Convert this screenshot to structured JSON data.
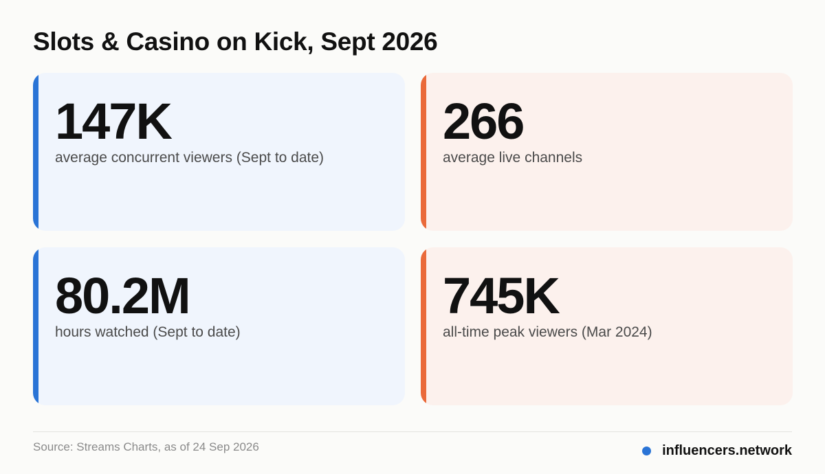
{
  "title": "Slots & Casino on Kick, Sept 2026",
  "stats": [
    {
      "value": "147K",
      "label": "average concurrent viewers (Sept to date)",
      "accent": "#2a74d6",
      "background": "#f0f5fd"
    },
    {
      "value": "266",
      "label": "average live channels",
      "accent": "#ea6a3a",
      "background": "#fcf1ed"
    },
    {
      "value": "80.2M",
      "label": "hours watched (Sept to date)",
      "accent": "#2a74d6",
      "background": "#f0f5fd"
    },
    {
      "value": "745K",
      "label": "all-time peak viewers (Mar 2024)",
      "accent": "#ea6a3a",
      "background": "#fcf1ed"
    }
  ],
  "footer": {
    "source": "Source: Streams Charts, as of 24 Sep 2026",
    "brand": "influencers.network",
    "brand_icon": "dot-icon"
  }
}
